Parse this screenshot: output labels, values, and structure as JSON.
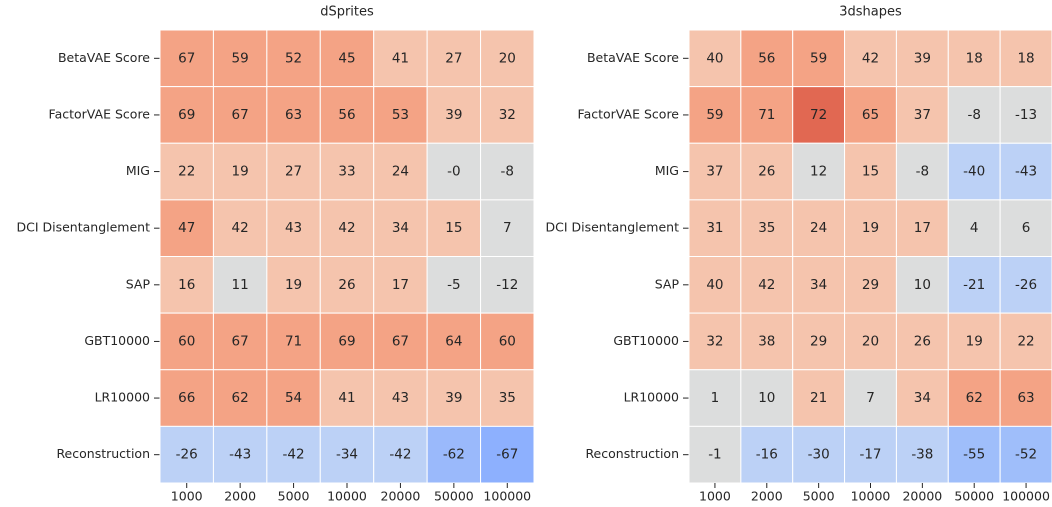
{
  "chart_data": [
    {
      "type": "heatmap",
      "title": "dSprites",
      "rows": [
        "BetaVAE Score",
        "FactorVAE Score",
        "MIG",
        "DCI Disentanglement",
        "SAP",
        "GBT10000",
        "LR10000",
        "Reconstruction"
      ],
      "columns": [
        "1000",
        "2000",
        "5000",
        "10000",
        "20000",
        "50000",
        "100000"
      ],
      "values": [
        [
          67,
          59,
          52,
          45,
          41,
          27,
          20
        ],
        [
          69,
          67,
          63,
          56,
          53,
          39,
          32
        ],
        [
          22,
          19,
          27,
          33,
          24,
          0,
          -8
        ],
        [
          47,
          42,
          43,
          42,
          34,
          15,
          7
        ],
        [
          16,
          11,
          19,
          26,
          17,
          -5,
          -12
        ],
        [
          60,
          67,
          71,
          69,
          67,
          64,
          60
        ],
        [
          66,
          62,
          54,
          41,
          43,
          39,
          35
        ],
        [
          -26,
          -43,
          -42,
          -34,
          -42,
          -62,
          -67
        ]
      ],
      "value_labels": [
        [
          "67",
          "59",
          "52",
          "45",
          "41",
          "27",
          "20"
        ],
        [
          "69",
          "67",
          "63",
          "56",
          "53",
          "39",
          "32"
        ],
        [
          "22",
          "19",
          "27",
          "33",
          "24",
          "-0",
          "-8"
        ],
        [
          "47",
          "42",
          "43",
          "42",
          "34",
          "15",
          "7"
        ],
        [
          "16",
          "11",
          "19",
          "26",
          "17",
          "-5",
          "-12"
        ],
        [
          "60",
          "67",
          "71",
          "69",
          "67",
          "64",
          "60"
        ],
        [
          "66",
          "62",
          "54",
          "41",
          "43",
          "39",
          "35"
        ],
        [
          "-26",
          "-43",
          "-42",
          "-34",
          "-42",
          "-62",
          "-67"
        ]
      ],
      "colors": [
        [
          "#f4a385",
          "#f4a385",
          "#f4a385",
          "#f4a385",
          "#f5c4ad",
          "#f5c4ad",
          "#f5c4ad"
        ],
        [
          "#f4a385",
          "#f4a385",
          "#f4a385",
          "#f4a385",
          "#f4a385",
          "#f5c4ad",
          "#f5c4ad"
        ],
        [
          "#f5c4ad",
          "#f5c4ad",
          "#f5c4ad",
          "#f5c4ad",
          "#f5c4ad",
          "#dcdddd",
          "#dcdddd"
        ],
        [
          "#f4a385",
          "#f5c4ad",
          "#f5c4ad",
          "#f5c4ad",
          "#f5c4ad",
          "#f5c4ad",
          "#dcdddd"
        ],
        [
          "#f5c4ad",
          "#dcdddd",
          "#f5c4ad",
          "#f5c4ad",
          "#f5c4ad",
          "#dcdddd",
          "#dcdddd"
        ],
        [
          "#f4a385",
          "#f4a385",
          "#f4a385",
          "#f4a385",
          "#f4a385",
          "#f4a385",
          "#f4a385"
        ],
        [
          "#f4a385",
          "#f4a385",
          "#f4a385",
          "#f5c4ad",
          "#f5c4ad",
          "#f5c4ad",
          "#f5c4ad"
        ],
        [
          "#bcd1f6",
          "#bcd1f6",
          "#bcd1f6",
          "#bcd1f6",
          "#bcd1f6",
          "#9ab9fb",
          "#8db0fe"
        ]
      ]
    },
    {
      "type": "heatmap",
      "title": "3dshapes",
      "rows": [
        "BetaVAE Score",
        "FactorVAE Score",
        "MIG",
        "DCI Disentanglement",
        "SAP",
        "GBT10000",
        "LR10000",
        "Reconstruction"
      ],
      "columns": [
        "1000",
        "2000",
        "5000",
        "10000",
        "20000",
        "50000",
        "100000"
      ],
      "values": [
        [
          40,
          56,
          59,
          42,
          39,
          18,
          18
        ],
        [
          59,
          71,
          72,
          65,
          37,
          -8,
          -13
        ],
        [
          37,
          26,
          12,
          15,
          -8,
          -40,
          -43
        ],
        [
          31,
          35,
          24,
          19,
          17,
          4,
          6
        ],
        [
          40,
          42,
          34,
          29,
          10,
          -21,
          -26
        ],
        [
          32,
          38,
          29,
          20,
          26,
          19,
          22
        ],
        [
          1,
          10,
          21,
          7,
          34,
          62,
          63
        ],
        [
          -1,
          -16,
          -30,
          -17,
          -38,
          -55,
          -52
        ]
      ],
      "colors": [
        [
          "#f5c4ad",
          "#f4a385",
          "#f4a385",
          "#f5c4ad",
          "#f5c4ad",
          "#f5c4ad",
          "#f5c4ad"
        ],
        [
          "#f4a385",
          "#f4a385",
          "#e16852",
          "#f4a385",
          "#f5c4ad",
          "#dcdddd",
          "#dcdddd"
        ],
        [
          "#f5c4ad",
          "#f5c4ad",
          "#dcdddd",
          "#f5c4ad",
          "#dcdddd",
          "#bcd1f6",
          "#bcd1f6"
        ],
        [
          "#f5c4ad",
          "#f5c4ad",
          "#f5c4ad",
          "#f5c4ad",
          "#f5c4ad",
          "#dcdddd",
          "#dcdddd"
        ],
        [
          "#f5c4ad",
          "#f5c4ad",
          "#f5c4ad",
          "#f5c4ad",
          "#dcdddd",
          "#bcd1f6",
          "#bcd1f6"
        ],
        [
          "#f5c4ad",
          "#f5c4ad",
          "#f5c4ad",
          "#f5c4ad",
          "#f5c4ad",
          "#f5c4ad",
          "#f5c4ad"
        ],
        [
          "#dcdddd",
          "#dcdddd",
          "#f5c4ad",
          "#dcdddd",
          "#f5c4ad",
          "#f4a385",
          "#f4a385"
        ],
        [
          "#dcdddd",
          "#bcd1f6",
          "#bcd1f6",
          "#bcd1f6",
          "#bcd1f6",
          "#9fbefa",
          "#9fbefa"
        ]
      ]
    }
  ]
}
